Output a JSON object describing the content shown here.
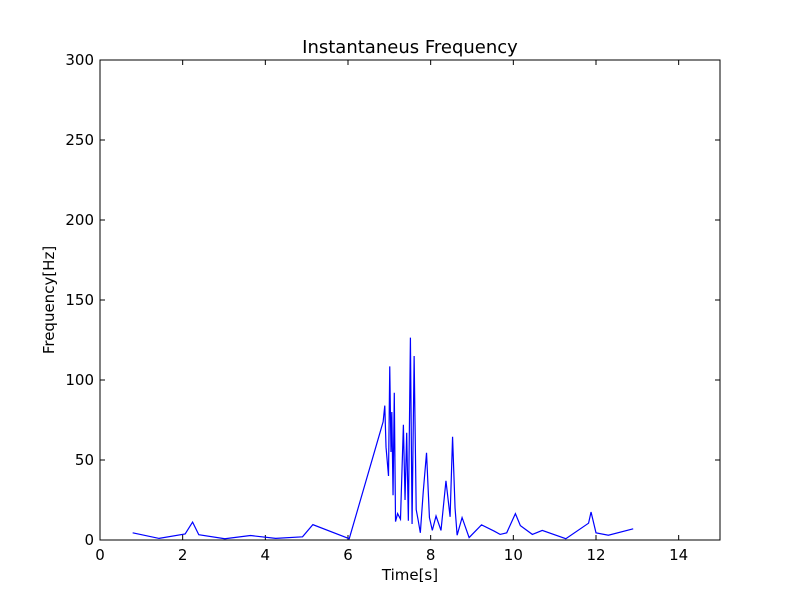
{
  "chart_data": {
    "type": "line",
    "title": "Instantaneus Frequency",
    "xlabel": "Time[s]",
    "ylabel": "Frequency[Hz]",
    "xlim": [
      0,
      15
    ],
    "ylim": [
      0,
      300
    ],
    "x_ticks": [
      0,
      2,
      4,
      6,
      8,
      10,
      12,
      14
    ],
    "y_ticks": [
      0,
      50,
      100,
      150,
      200,
      250,
      300
    ],
    "grid": false,
    "line_color": "#0000ff",
    "series": [
      {
        "x": [
          0.79,
          1.43,
          2.06,
          2.24,
          2.39,
          3.02,
          3.64,
          4.25,
          4.9,
          5.15,
          6.03,
          6.85,
          6.89,
          6.92,
          6.95,
          6.98,
          7.01,
          7.04,
          7.06,
          7.09,
          7.12,
          7.15,
          7.2,
          7.27,
          7.34,
          7.38,
          7.42,
          7.46,
          7.51,
          7.55,
          7.6,
          7.65,
          7.7,
          7.75,
          7.82,
          7.9,
          7.97,
          8.04,
          8.13,
          8.25,
          8.37,
          8.47,
          8.53,
          8.59,
          8.64,
          8.76,
          8.93,
          9.23,
          9.54,
          9.68,
          9.84,
          10.05,
          10.17,
          10.46,
          10.7,
          11.27,
          11.82,
          11.88,
          12.0,
          12.3,
          12.9
        ],
        "y": [
          4.5,
          1.0,
          3.8,
          11.2,
          3.3,
          0.8,
          2.8,
          1.0,
          2.0,
          9.6,
          0.8,
          73.9,
          84.0,
          58.0,
          49.0,
          40.0,
          108.5,
          55.0,
          80.0,
          28.0,
          92.0,
          11.5,
          16.5,
          13.0,
          72.0,
          25.0,
          67.0,
          12.0,
          126.5,
          10.0,
          115.0,
          19.0,
          12.0,
          4.5,
          30.0,
          54.5,
          14.0,
          6.0,
          15.0,
          6.0,
          37.0,
          14.5,
          64.5,
          20.0,
          3.0,
          14.0,
          1.5,
          9.5,
          5.5,
          3.5,
          4.5,
          16.5,
          9.0,
          3.5,
          6.0,
          0.8,
          10.5,
          17.5,
          4.5,
          3.0,
          7.0
        ]
      }
    ]
  }
}
